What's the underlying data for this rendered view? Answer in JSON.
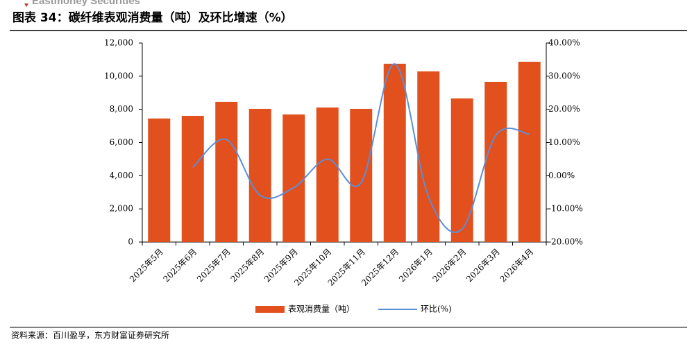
{
  "header": {
    "watermark": "Eastmoney Securities"
  },
  "chart_data": {
    "type": "bar",
    "title": "图表 34：碳纤维表观消费量（吨）及环比增速（%）",
    "categories": [
      "2025年5月",
      "2025年6月",
      "2025年7月",
      "2025年8月",
      "2025年9月",
      "2025年10月",
      "2025年11月",
      "2025年12月",
      "2026年1月",
      "2026年2月",
      "2026年3月",
      "2026年4月"
    ],
    "series": [
      {
        "name": "表观消费量（吨）",
        "type": "bar",
        "color": "#e2501e",
        "values": [
          7450,
          7610,
          8450,
          8030,
          7690,
          8110,
          8030,
          10750,
          10290,
          8660,
          9660,
          10870
        ]
      },
      {
        "name": "环比(%)",
        "type": "line",
        "axis": "y2",
        "color": "#5b8fd6",
        "smooth": true,
        "values": [
          null,
          2.5,
          10.9,
          -5.9,
          -3.6,
          5.0,
          -2.1,
          33.7,
          -6.3,
          -16.1,
          12.1,
          12.5
        ]
      }
    ],
    "ylim": [
      0,
      12000
    ],
    "yticks": [
      0,
      {
        "value": 2000,
        "label": "2,000"
      },
      {
        "value": 4000,
        "label": "4,000"
      },
      {
        "value": 6000,
        "label": "6,000"
      },
      {
        "value": 8000,
        "label": "8,000"
      },
      {
        "value": 10000,
        "label": "10,000"
      },
      {
        "value": 12000,
        "label": "12,000"
      }
    ],
    "y2lim": [
      -20,
      40
    ],
    "y2ticks": [
      {
        "value": -20,
        "label": "-20.00%"
      },
      {
        "value": -10,
        "label": "-10.00%"
      },
      {
        "value": 0,
        "label": "0.00%"
      },
      {
        "value": 10,
        "label": "10.00%"
      },
      {
        "value": 20,
        "label": "20.00%"
      },
      {
        "value": 30,
        "label": "30.00%"
      },
      {
        "value": 40,
        "label": "40.00%"
      }
    ],
    "legend": "bottom"
  },
  "footer": {
    "source": "资料来源：百川盈孚，东方财富证券研究所"
  }
}
